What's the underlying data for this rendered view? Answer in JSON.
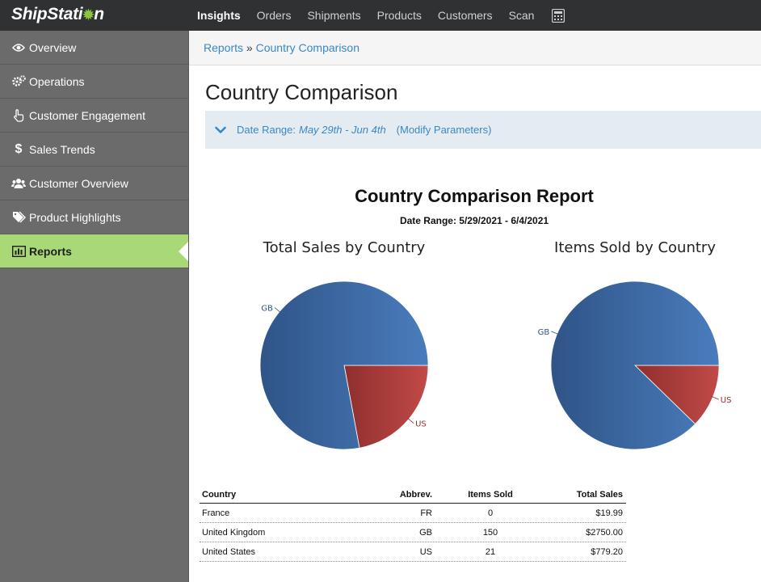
{
  "app": {
    "logo_main": "ShipStati",
    "logo_end": "n"
  },
  "nav": {
    "items": [
      "Insights",
      "Orders",
      "Shipments",
      "Products",
      "Customers",
      "Scan"
    ],
    "active": "Insights",
    "calculator_icon": "calculator-icon"
  },
  "sidebar": {
    "items": [
      {
        "label": "Overview",
        "icon": "eye-icon"
      },
      {
        "label": "Operations",
        "icon": "gears-icon"
      },
      {
        "label": "Customer Engagement",
        "icon": "pointer-hand-icon"
      },
      {
        "label": "Sales Trends",
        "icon": "dollar-icon"
      },
      {
        "label": "Customer Overview",
        "icon": "users-icon"
      },
      {
        "label": "Product Highlights",
        "icon": "tags-icon"
      },
      {
        "label": "Reports",
        "icon": "bar-chart-icon"
      }
    ],
    "active": "Reports",
    "active_color": "#a9d877"
  },
  "breadcrumb": {
    "root": "Reports",
    "separator": "»",
    "current": "Country Comparison"
  },
  "page": {
    "title": "Country Comparison",
    "param_label": "Date Range:",
    "param_value": "May 29th - Jun 4th",
    "modify_label": "(Modify Parameters)"
  },
  "report": {
    "title": "Country Comparison Report",
    "subtitle": "Date Range: 5/29/2021 - 6/4/2021"
  },
  "chart_data": [
    {
      "type": "pie",
      "title": "Total Sales by Country",
      "categories": [
        "GB",
        "US"
      ],
      "values": [
        2750.0,
        779.2
      ],
      "colors": [
        "#3e6aa6",
        "#b8423f"
      ]
    },
    {
      "type": "pie",
      "title": "Items Sold by Country",
      "categories": [
        "GB",
        "US"
      ],
      "values": [
        150,
        21
      ],
      "colors": [
        "#3e6aa6",
        "#b8423f"
      ]
    }
  ],
  "table": {
    "headers": [
      "Country",
      "Abbrev.",
      "Items Sold",
      "Total Sales"
    ],
    "rows": [
      [
        "France",
        "FR",
        "0",
        "$19.99"
      ],
      [
        "United Kingdom",
        "GB",
        "150",
        "$2750.00"
      ],
      [
        "United States",
        "US",
        "21",
        "$779.20"
      ]
    ]
  }
}
